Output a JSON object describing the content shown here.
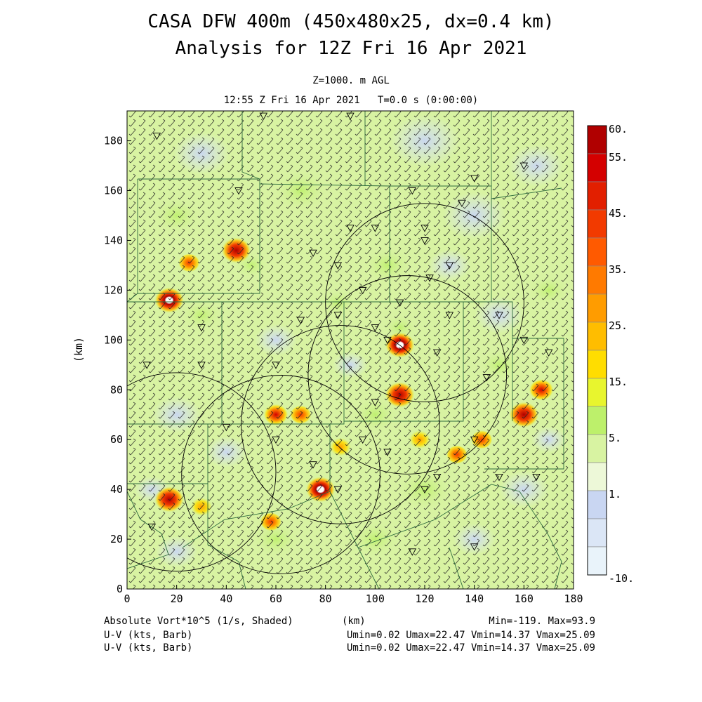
{
  "header": {
    "title_line1": "CASA DFW 400m (450x480x25, dx=0.4 km)",
    "title_line2": "Analysis for 12Z Fri 16 Apr 2021",
    "level": "Z=1000. m AGL",
    "time": "12:55 Z Fri 16 Apr 2021   T=0.0 s (0:00:00)"
  },
  "footer": {
    "field_label": "Absolute Vort*10^5 (1/s, Shaded)",
    "x_unit": "(km)",
    "field_range": "Min=-119. Max=93.9",
    "vector1_label": "U-V (kts, Barb)",
    "vector1_range": "Umin=0.02 Umax=22.47 Vmin=14.37 Vmax=25.09",
    "vector2_label": "U-V (kts, Barb)",
    "vector2_range": "Umin=0.02 Umax=22.47 Vmin=14.37 Vmax=25.09"
  },
  "chart_data": {
    "type": "heatmap",
    "x": {
      "label": "(km)",
      "range": [
        0,
        180
      ],
      "ticks": [
        0,
        20,
        40,
        60,
        80,
        100,
        120,
        140,
        160,
        180
      ]
    },
    "y": {
      "label": "(km)",
      "range": [
        0,
        192
      ],
      "ticks": [
        0,
        20,
        40,
        60,
        80,
        100,
        120,
        140,
        160,
        180
      ]
    },
    "colorbar": {
      "labels": [
        "60.",
        "55.",
        "45.",
        "35.",
        "25.",
        "15.",
        "5.",
        "1.",
        "-10."
      ],
      "colors": [
        "#b00000",
        "#d40000",
        "#e21f00",
        "#f23a00",
        "#ff5a00",
        "#ff7a00",
        "#ff9c00",
        "#ffbd00",
        "#ffdd00",
        "#e8f52e",
        "#bdf06b",
        "#d8f3a2",
        "#edf8d8",
        "#c9d6f2",
        "#dbe6f6",
        "#e9f3fa"
      ]
    },
    "vorticity_cells": [
      {
        "x": 17,
        "y": 116,
        "v": 60
      },
      {
        "x": 44,
        "y": 136,
        "v": 55
      },
      {
        "x": 25,
        "y": 131,
        "v": 35
      },
      {
        "x": 110,
        "y": 98,
        "v": 60
      },
      {
        "x": 110,
        "y": 78,
        "v": 55
      },
      {
        "x": 60,
        "y": 70,
        "v": 45
      },
      {
        "x": 70,
        "y": 70,
        "v": 35
      },
      {
        "x": 78,
        "y": 40,
        "v": 60
      },
      {
        "x": 17,
        "y": 36,
        "v": 55
      },
      {
        "x": 58,
        "y": 27,
        "v": 35
      },
      {
        "x": 133,
        "y": 54,
        "v": 35
      },
      {
        "x": 143,
        "y": 60,
        "v": 35
      },
      {
        "x": 160,
        "y": 70,
        "v": 55
      },
      {
        "x": 167,
        "y": 80,
        "v": 45
      },
      {
        "x": 118,
        "y": 60,
        "v": 25
      },
      {
        "x": 86,
        "y": 57,
        "v": 25
      },
      {
        "x": 30,
        "y": 33,
        "v": 25
      }
    ],
    "radar_rings": [
      {
        "x": 20,
        "y": 47,
        "r": 40
      },
      {
        "x": 62,
        "y": 46,
        "r": 40
      },
      {
        "x": 86,
        "y": 66,
        "r": 40
      },
      {
        "x": 113,
        "y": 86,
        "r": 40
      },
      {
        "x": 120,
        "y": 115,
        "r": 40
      }
    ]
  }
}
